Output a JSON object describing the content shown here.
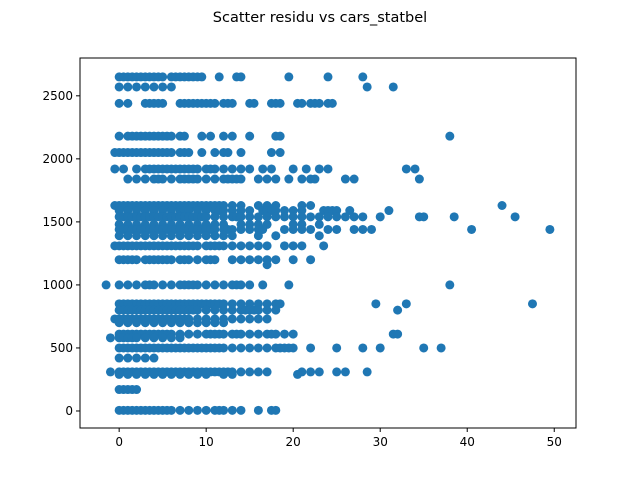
{
  "chart_data": {
    "type": "scatter",
    "title": "Scatter residu vs cars_statbel",
    "xlabel": "",
    "ylabel": "",
    "xlim": [
      -4.5,
      52.5
    ],
    "ylim": [
      -135,
      2800
    ],
    "xticks": [
      0,
      10,
      20,
      30,
      40,
      50
    ],
    "yticks": [
      0,
      500,
      1000,
      1500,
      2000,
      2500
    ],
    "xtick_labels": [
      "0",
      "10",
      "20",
      "30",
      "40",
      "50"
    ],
    "ytick_labels": [
      "0",
      "500",
      "1000",
      "1500",
      "2000",
      "2500"
    ],
    "grid": false,
    "legend": "none",
    "color": "#1f77b4",
    "rows": [
      {
        "y": 2650,
        "x": [
          0,
          0.5,
          1,
          1.5,
          2,
          2.5,
          3,
          3.5,
          4,
          4.5,
          5,
          6,
          6.5,
          7,
          7.5,
          8,
          8.5,
          9,
          9.5,
          11.5,
          13.5,
          14,
          19.5,
          24,
          28
        ]
      },
      {
        "y": 2570,
        "x": [
          0,
          1,
          2,
          3,
          4,
          5,
          6,
          28.5,
          31.5
        ]
      },
      {
        "y": 2440,
        "x": [
          0,
          1,
          3,
          3.5,
          4,
          4.5,
          5,
          7,
          7.5,
          8,
          8.5,
          9,
          9.5,
          10,
          10.5,
          11,
          12,
          12.5,
          13,
          15,
          15.5,
          17.5,
          18,
          18.5,
          20.5,
          21,
          22,
          22.5,
          23,
          24,
          24.5
        ]
      },
      {
        "y": 2180,
        "x": [
          0,
          1,
          1.5,
          2,
          2.5,
          3,
          3.5,
          4,
          4.5,
          5,
          5.5,
          6,
          7,
          7.5,
          9.5,
          10.5,
          12,
          13,
          15,
          18,
          18.5,
          38
        ]
      },
      {
        "y": 2050,
        "x": [
          -0.5,
          0,
          0.5,
          1,
          1.5,
          2,
          2.5,
          3,
          3.5,
          4,
          4.5,
          5,
          5.5,
          6,
          7,
          7.5,
          8,
          9.5,
          11,
          12,
          12.5,
          14,
          17.5,
          18.5
        ]
      },
      {
        "y": 1920,
        "x": [
          -0.5,
          0.5,
          2,
          3,
          3.5,
          4,
          4.5,
          5,
          5.5,
          6,
          6.5,
          7,
          7.5,
          8,
          8.5,
          9,
          10,
          10.5,
          11,
          12,
          13,
          14,
          15,
          16.5,
          17.5,
          20,
          21.5,
          23,
          24,
          33,
          34
        ]
      },
      {
        "y": 1840,
        "x": [
          1,
          2,
          3,
          4,
          4.5,
          5,
          6,
          7,
          7.5,
          8,
          8.5,
          9,
          10,
          11,
          12,
          12.5,
          13,
          13.5,
          14,
          16,
          17,
          18,
          19.5,
          21,
          22,
          22.5,
          26,
          27,
          34.5
        ]
      },
      {
        "y": 1630,
        "x": [
          -0.5,
          0,
          0.5,
          1,
          1.5,
          2,
          2.5,
          3,
          3.5,
          4,
          4.5,
          5,
          5.5,
          6,
          6.5,
          7,
          7.5,
          8,
          8.5,
          9,
          9.5,
          10,
          10.5,
          11,
          11.5,
          12,
          13,
          14,
          16,
          17,
          18,
          21,
          22,
          44
        ]
      },
      {
        "y": 1590,
        "x": [
          0,
          1,
          2,
          3,
          4,
          5,
          6,
          7,
          7.5,
          8,
          9,
          10,
          11,
          11.5,
          12,
          13,
          14,
          15,
          16.5,
          17,
          17.5,
          18,
          19,
          20,
          21,
          23.5,
          24,
          24.5,
          25,
          26.5,
          31
        ]
      },
      {
        "y": 1540,
        "x": [
          0,
          0.5,
          1,
          1.5,
          2,
          2.5,
          3,
          3.5,
          4,
          4.5,
          5,
          5.5,
          6,
          6.5,
          7,
          7.5,
          8,
          8.5,
          9,
          9.5,
          10,
          11,
          12,
          13,
          13.5,
          14,
          15,
          16,
          17,
          18,
          19,
          20,
          21,
          22,
          23,
          24,
          25,
          26,
          27,
          28,
          30,
          34.5,
          35,
          38.5,
          45.5
        ]
      },
      {
        "y": 1480,
        "x": [
          0,
          1,
          2,
          3,
          4,
          5,
          6,
          7,
          8,
          9,
          10,
          11,
          12,
          14,
          15,
          16,
          17,
          20,
          21,
          23
        ]
      },
      {
        "y": 1440,
        "x": [
          0,
          0.5,
          1,
          1.5,
          2,
          2.5,
          3,
          3.5,
          4,
          4.5,
          5,
          5.5,
          6,
          6.5,
          7,
          7.5,
          8,
          8.5,
          9,
          9.5,
          10,
          10.5,
          11,
          12,
          12.5,
          13,
          14,
          15,
          16,
          16.5,
          19,
          20,
          21,
          22,
          24,
          25,
          27,
          28,
          29,
          40.5,
          49.5
        ]
      },
      {
        "y": 1390,
        "x": [
          0,
          1,
          2,
          3,
          4,
          5,
          6,
          7,
          8,
          9,
          10,
          11,
          12,
          13,
          16,
          18,
          23
        ]
      },
      {
        "y": 1310,
        "x": [
          -0.5,
          0,
          0.5,
          1,
          1.5,
          2,
          2.5,
          3,
          3.5,
          4,
          4.5,
          5,
          5.5,
          6,
          6.5,
          7,
          7.5,
          8,
          8.5,
          9,
          10,
          10.5,
          11,
          11.5,
          12,
          13,
          14,
          15,
          16,
          17,
          19,
          20,
          21,
          23.5
        ]
      },
      {
        "y": 1200,
        "x": [
          0,
          0.5,
          1,
          1.5,
          2,
          3,
          3.5,
          4,
          4.5,
          5,
          5.5,
          6,
          7,
          7.5,
          8,
          9,
          10,
          10.5,
          11,
          13,
          14,
          15,
          16,
          17,
          18,
          20,
          22
        ]
      },
      {
        "y": 1160,
        "x": [
          17
        ]
      },
      {
        "y": 1000,
        "x": [
          -1.5,
          0,
          1,
          2,
          3,
          3.5,
          4,
          5,
          6,
          7,
          7.5,
          8,
          8.5,
          9,
          10,
          11,
          12,
          13,
          13.5,
          14,
          15,
          16.5,
          19.5,
          38
        ]
      },
      {
        "y": 850,
        "x": [
          0,
          0.5,
          1,
          1.5,
          2,
          2.5,
          3,
          3.5,
          4,
          4.5,
          5,
          5.5,
          6,
          6.5,
          7,
          7.5,
          8,
          8.5,
          9,
          9.5,
          10,
          10.5,
          11,
          11.5,
          12,
          13,
          14,
          15,
          16,
          17,
          18,
          18.5,
          29.5,
          33,
          47.5
        ]
      },
      {
        "y": 800,
        "x": [
          0,
          0.5,
          1,
          1.5,
          2,
          2.5,
          3,
          3.5,
          4,
          4.5,
          5,
          5.5,
          6,
          6.5,
          7,
          7.5,
          8,
          8.5,
          9,
          10,
          11,
          12,
          13,
          14,
          14.5,
          15,
          15.5,
          16,
          17,
          18,
          32
        ]
      },
      {
        "y": 730,
        "x": [
          -0.5,
          0,
          0.5,
          1,
          1.5,
          2,
          2.5,
          3,
          3.5,
          4,
          4.5,
          5,
          5.5,
          6,
          6.5,
          7,
          7.5,
          8,
          9,
          10,
          11,
          12,
          13,
          14,
          15,
          16,
          17
        ]
      },
      {
        "y": 700,
        "x": [
          0,
          1,
          2,
          3,
          4,
          5,
          6,
          7,
          8,
          9,
          10,
          11,
          12
        ]
      },
      {
        "y": 610,
        "x": [
          0,
          0.5,
          1,
          1.5,
          2,
          2.5,
          3,
          3.5,
          4,
          4.5,
          5,
          5.5,
          6,
          7,
          8,
          9,
          10,
          10.5,
          11,
          11.5,
          12,
          13,
          13.5,
          14,
          15,
          16,
          17,
          17.5,
          18,
          19,
          20,
          31.5,
          32
        ]
      },
      {
        "y": 580,
        "x": [
          -1,
          0,
          0.5,
          1,
          1.5,
          2,
          3,
          4,
          5,
          6,
          7
        ]
      },
      {
        "y": 500,
        "x": [
          0,
          0.5,
          1,
          1.5,
          2,
          2.5,
          3,
          3.5,
          4,
          4.5,
          5,
          5.5,
          6,
          6.5,
          7,
          7.5,
          8,
          8.5,
          9,
          9.5,
          10,
          10.5,
          11,
          11.5,
          12,
          13,
          14,
          15,
          16,
          17,
          18,
          18.5,
          19,
          19.5,
          20,
          22,
          25,
          28,
          30,
          35,
          37
        ]
      },
      {
        "y": 420,
        "x": [
          0,
          1,
          2,
          3,
          4
        ]
      },
      {
        "y": 310,
        "x": [
          -1,
          0,
          0.5,
          1,
          1.5,
          2,
          2.5,
          3,
          3.5,
          4,
          4.5,
          5,
          5.5,
          6,
          6.5,
          7,
          7.5,
          8,
          8.5,
          9,
          9.5,
          10,
          10.5,
          11,
          11.5,
          12,
          12.5,
          13,
          14,
          15,
          16,
          17,
          21,
          22,
          23,
          25,
          26,
          28.5
        ]
      },
      {
        "y": 290,
        "x": [
          0,
          1,
          2,
          3,
          4,
          5,
          6,
          7,
          8,
          9,
          10,
          12,
          13,
          20.5
        ]
      },
      {
        "y": 170,
        "x": [
          0,
          0.5,
          1,
          1.5,
          2
        ]
      },
      {
        "y": 5,
        "x": [
          0,
          0.5,
          1,
          1.5,
          2,
          2.5,
          3,
          3.5,
          4,
          4.5,
          5,
          5.5,
          6,
          7,
          8,
          9,
          10,
          11,
          11.5,
          12,
          13,
          14,
          16,
          17.5,
          18
        ]
      }
    ]
  }
}
